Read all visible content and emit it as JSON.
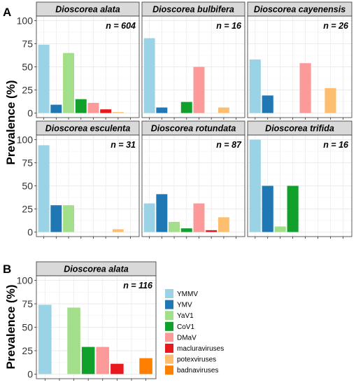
{
  "figure": {
    "ylabel": "Prevalence (%)",
    "panel_labels": [
      "A",
      "B"
    ],
    "yticks": [
      0,
      25,
      50,
      75,
      100
    ]
  },
  "legend": {
    "items": [
      {
        "label": "YMMV",
        "color": "#9ad3e6"
      },
      {
        "label": "YMV",
        "color": "#1f78b4"
      },
      {
        "label": "YaV1",
        "color": "#a3df8a"
      },
      {
        "label": "CoV1",
        "color": "#12a02c"
      },
      {
        "label": "DMaV",
        "color": "#fb9a99"
      },
      {
        "label": "macluraviruses",
        "color": "#e8191c"
      },
      {
        "label": "potexviruses",
        "color": "#fdbf6f"
      },
      {
        "label": "badnaviruses",
        "color": "#ff7f00"
      }
    ]
  },
  "chart_data": [
    {
      "type": "bar",
      "panel": "A",
      "title": "Dioscorea alata",
      "annotation": "n = 604",
      "categories": [
        "YMMV",
        "YMV",
        "YaV1",
        "CoV1",
        "DMaV",
        "macluraviruses",
        "potexviruses",
        "badnaviruses"
      ],
      "values": [
        74,
        9,
        65,
        15,
        11,
        4,
        1,
        0
      ],
      "ylim": [
        0,
        100
      ],
      "ylabel": "Prevalence (%)"
    },
    {
      "type": "bar",
      "panel": "A",
      "title": "Dioscorea bulbifera",
      "annotation": "n = 16",
      "categories": [
        "YMMV",
        "YMV",
        "YaV1",
        "CoV1",
        "DMaV",
        "macluraviruses",
        "potexviruses",
        "badnaviruses"
      ],
      "values": [
        81,
        6,
        0,
        12,
        50,
        0,
        6,
        0
      ],
      "ylim": [
        0,
        100
      ],
      "ylabel": "Prevalence (%)"
    },
    {
      "type": "bar",
      "panel": "A",
      "title": "Dioscorea cayenensis",
      "annotation": "n = 26",
      "categories": [
        "YMMV",
        "YMV",
        "YaV1",
        "CoV1",
        "DMaV",
        "macluraviruses",
        "potexviruses",
        "badnaviruses"
      ],
      "values": [
        58,
        19,
        0,
        0,
        54,
        0,
        27,
        0
      ],
      "ylim": [
        0,
        100
      ],
      "ylabel": "Prevalence (%)"
    },
    {
      "type": "bar",
      "panel": "A",
      "title": "Dioscorea esculenta",
      "annotation": "n = 31",
      "categories": [
        "YMMV",
        "YMV",
        "YaV1",
        "CoV1",
        "DMaV",
        "macluraviruses",
        "potexviruses",
        "badnaviruses"
      ],
      "values": [
        94,
        29,
        29,
        0,
        0,
        0,
        3,
        0
      ],
      "ylim": [
        0,
        100
      ],
      "ylabel": "Prevalence (%)"
    },
    {
      "type": "bar",
      "panel": "A",
      "title": "Dioscorea rotundata",
      "annotation": "n = 87",
      "categories": [
        "YMMV",
        "YMV",
        "YaV1",
        "CoV1",
        "DMaV",
        "macluraviruses",
        "potexviruses",
        "badnaviruses"
      ],
      "values": [
        31,
        41,
        11,
        4,
        31,
        2,
        16,
        0
      ],
      "ylim": [
        0,
        100
      ],
      "ylabel": "Prevalence (%)"
    },
    {
      "type": "bar",
      "panel": "A",
      "title": "Dioscorea trifida",
      "annotation": "n = 16",
      "categories": [
        "YMMV",
        "YMV",
        "YaV1",
        "CoV1",
        "DMaV",
        "macluraviruses",
        "potexviruses",
        "badnaviruses"
      ],
      "values": [
        100,
        50,
        6,
        50,
        0,
        0,
        0,
        0
      ],
      "ylim": [
        0,
        100
      ],
      "ylabel": "Prevalence (%)"
    },
    {
      "type": "bar",
      "panel": "B",
      "title": "Dioscorea alata",
      "annotation": "n = 116",
      "categories": [
        "YMMV",
        "YMV",
        "YaV1",
        "CoV1",
        "DMaV",
        "macluraviruses",
        "potexviruses",
        "badnaviruses"
      ],
      "values": [
        74,
        0,
        71,
        29,
        29,
        11,
        0,
        17
      ],
      "ylim": [
        0,
        100
      ],
      "ylabel": "Prevalence (%)"
    }
  ]
}
